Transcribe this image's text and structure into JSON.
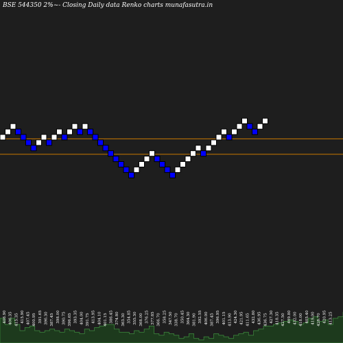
{
  "title": "BSE 544350  2%~-  Closing Daily data  Renko  charts munafasutra.in",
  "colors": {
    "background": "#000000",
    "plot_background": "#1e1e1e",
    "up_brick": "#ffffff",
    "down_brick": "#0000ff",
    "brick_border": "#000000",
    "reference_line": "#cc7a00",
    "volume_fill": "#1d3a1d",
    "volume_edge": "#3f8f3f",
    "label": "#ffffff"
  },
  "chart_data": {
    "type": "renko",
    "title": "BSE 544350  2%~-  Closing Daily data  Renko  charts munafasutra.in",
    "bricks": [
      {
        "dir": "up",
        "level": 0
      },
      {
        "dir": "up",
        "level": 1
      },
      {
        "dir": "up",
        "level": 2
      },
      {
        "dir": "down",
        "level": 1
      },
      {
        "dir": "down",
        "level": 0
      },
      {
        "dir": "down",
        "level": -1
      },
      {
        "dir": "down",
        "level": -2
      },
      {
        "dir": "up",
        "level": -1
      },
      {
        "dir": "up",
        "level": 0
      },
      {
        "dir": "down",
        "level": -1
      },
      {
        "dir": "up",
        "level": 0
      },
      {
        "dir": "up",
        "level": 1
      },
      {
        "dir": "down",
        "level": 0
      },
      {
        "dir": "up",
        "level": 1
      },
      {
        "dir": "up",
        "level": 2
      },
      {
        "dir": "down",
        "level": 1
      },
      {
        "dir": "up",
        "level": 2
      },
      {
        "dir": "down",
        "level": 1
      },
      {
        "dir": "down",
        "level": 0
      },
      {
        "dir": "down",
        "level": -1
      },
      {
        "dir": "down",
        "level": -2
      },
      {
        "dir": "down",
        "level": -3
      },
      {
        "dir": "down",
        "level": -4
      },
      {
        "dir": "down",
        "level": -5
      },
      {
        "dir": "down",
        "level": -6
      },
      {
        "dir": "down",
        "level": -7
      },
      {
        "dir": "up",
        "level": -6
      },
      {
        "dir": "up",
        "level": -5
      },
      {
        "dir": "up",
        "level": -4
      },
      {
        "dir": "up",
        "level": -3
      },
      {
        "dir": "down",
        "level": -4
      },
      {
        "dir": "down",
        "level": -5
      },
      {
        "dir": "down",
        "level": -6
      },
      {
        "dir": "down",
        "level": -7
      },
      {
        "dir": "up",
        "level": -6
      },
      {
        "dir": "up",
        "level": -5
      },
      {
        "dir": "up",
        "level": -4
      },
      {
        "dir": "up",
        "level": -3
      },
      {
        "dir": "up",
        "level": -2
      },
      {
        "dir": "down",
        "level": -3
      },
      {
        "dir": "up",
        "level": -2
      },
      {
        "dir": "up",
        "level": -1
      },
      {
        "dir": "up",
        "level": 0
      },
      {
        "dir": "up",
        "level": 1
      },
      {
        "dir": "down",
        "level": 0
      },
      {
        "dir": "up",
        "level": 1
      },
      {
        "dir": "up",
        "level": 2
      },
      {
        "dir": "up",
        "level": 3
      },
      {
        "dir": "down",
        "level": 2
      },
      {
        "dir": "down",
        "level": 1
      },
      {
        "dir": "up",
        "level": 2
      },
      {
        "dir": "up",
        "level": 3
      }
    ],
    "reference_lines": [
      {
        "name": "upper",
        "level": -0.3
      },
      {
        "name": "lower",
        "level": -3.15
      }
    ],
    "volume_labels": [
      "406.90",
      "406.35",
      "415.35",
      "415.90",
      "407.45",
      "400.95",
      "391.65",
      "396.30",
      "387.45",
      "398.00",
      "390.75",
      "396.65",
      "393.35",
      "404.00",
      "391.75",
      "413.95",
      "404.10",
      "401.15",
      "386.45",
      "374.80",
      "363.30",
      "354.85",
      "355.30",
      "368.00",
      "376.25",
      "377.85",
      "366.70",
      "358.25",
      "347.50",
      "338.70",
      "350.45",
      "364.30",
      "381.90",
      "392.55",
      "406.00",
      "387.45",
      "396.95",
      "401.15",
      "413.90",
      "424.30",
      "421.95",
      "411.65",
      "432.80",
      "436.95",
      "436.75",
      "427.30",
      "418.35",
      "427.50",
      "409.80",
      "432.00",
      "418.00",
      "405.40",
      "419.00",
      "428.70",
      "420.95",
      "413.25"
    ],
    "volume_levels": [
      0.8,
      0.6,
      0.8,
      0.6,
      0.4,
      0.5,
      0.55,
      0.4,
      0.35,
      0.4,
      0.45,
      0.4,
      0.35,
      0.45,
      0.4,
      0.35,
      0.3,
      0.45,
      0.4,
      0.5,
      0.55,
      0.6,
      0.6,
      0.45,
      0.35,
      0.35,
      0.3,
      0.4,
      0.35,
      0.45,
      0.55,
      0.3,
      0.25,
      0.35,
      0.3,
      0.25,
      0.15,
      0.2,
      0.3,
      0.15,
      0.1,
      0.2,
      0.15,
      0.3,
      0.25,
      0.2,
      0.15,
      0.25,
      0.3,
      0.35,
      0.25,
      0.4,
      0.45,
      0.55,
      0.55,
      0.6,
      0.65,
      0.7,
      0.75,
      0.7,
      0.6,
      0.65,
      0.8,
      0.85,
      0.7,
      0.75,
      0.6,
      0.8,
      0.85,
      1.0
    ]
  }
}
